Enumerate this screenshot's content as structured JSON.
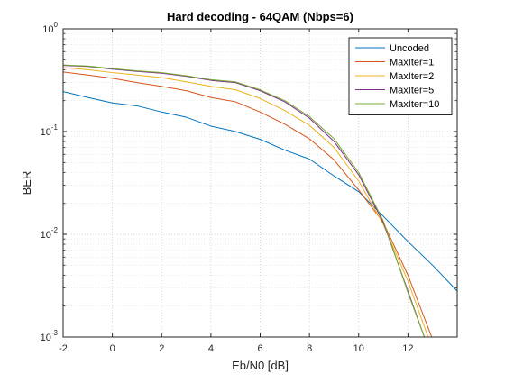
{
  "chart_data": {
    "type": "line",
    "title": "Hard decoding - 64QAM (Nbps=6)",
    "xlabel": "Eb/N0 [dB]",
    "ylabel": "BER",
    "xlim": [
      -2,
      14
    ],
    "ylim": [
      0.001,
      1
    ],
    "yscale": "log",
    "grid": true,
    "minor_grid": true,
    "legend_position": "top-right",
    "x_ticks": [
      -2,
      0,
      2,
      4,
      6,
      8,
      10,
      12
    ],
    "x_tick_labels": [
      "-2",
      "0",
      "2",
      "4",
      "6",
      "8",
      "10",
      "12"
    ],
    "y_ticks": [
      0.001,
      0.01,
      0.1,
      1
    ],
    "y_tick_labels": [
      {
        "base": "10",
        "exp": "-3"
      },
      {
        "base": "10",
        "exp": "-2"
      },
      {
        "base": "10",
        "exp": "-1"
      },
      {
        "base": "10",
        "exp": "0"
      }
    ],
    "series": [
      {
        "name": "Uncoded",
        "color": "#0072BD",
        "x": [
          -2,
          -1,
          0,
          1,
          2,
          3,
          4,
          5,
          6,
          7,
          8,
          9,
          10,
          11,
          12,
          13,
          14
        ],
        "y": [
          0.245,
          0.215,
          0.19,
          0.178,
          0.155,
          0.138,
          0.113,
          0.1,
          0.084,
          0.066,
          0.054,
          0.037,
          0.026,
          0.015,
          0.0085,
          0.005,
          0.0028
        ]
      },
      {
        "name": "MaxIter=1",
        "color": "#D95319",
        "x": [
          -2,
          -1,
          0,
          1,
          2,
          3,
          4,
          5,
          6,
          7,
          8,
          9,
          10,
          11,
          12,
          13
        ],
        "y": [
          0.38,
          0.355,
          0.33,
          0.3,
          0.275,
          0.25,
          0.215,
          0.195,
          0.155,
          0.118,
          0.085,
          0.053,
          0.027,
          0.013,
          0.004,
          0.00095
        ]
      },
      {
        "name": "MaxIter=2",
        "color": "#EDB120",
        "x": [
          -2,
          -1,
          0,
          1,
          2,
          3,
          4,
          5,
          6,
          7,
          8,
          9,
          10,
          11,
          12,
          12.85
        ],
        "y": [
          0.42,
          0.4,
          0.375,
          0.355,
          0.335,
          0.305,
          0.275,
          0.255,
          0.21,
          0.16,
          0.115,
          0.07,
          0.033,
          0.0125,
          0.0035,
          0.00095
        ]
      },
      {
        "name": "MaxIter=5",
        "color": "#7E2F8E",
        "x": [
          -2,
          -1,
          0,
          1,
          2,
          3,
          4,
          5,
          6,
          7,
          8,
          9,
          10,
          11,
          12,
          12.7
        ],
        "y": [
          0.44,
          0.43,
          0.405,
          0.385,
          0.37,
          0.345,
          0.315,
          0.3,
          0.25,
          0.195,
          0.135,
          0.08,
          0.038,
          0.013,
          0.0028,
          0.00095
        ]
      },
      {
        "name": "MaxIter=10",
        "color": "#77AC30",
        "x": [
          -2,
          -1,
          0,
          1,
          2,
          3,
          4,
          5,
          6,
          7,
          8,
          9,
          10,
          11,
          12,
          12.7
        ],
        "y": [
          0.445,
          0.435,
          0.41,
          0.39,
          0.375,
          0.35,
          0.32,
          0.305,
          0.255,
          0.2,
          0.14,
          0.085,
          0.04,
          0.0135,
          0.0027,
          0.00095
        ]
      }
    ]
  }
}
